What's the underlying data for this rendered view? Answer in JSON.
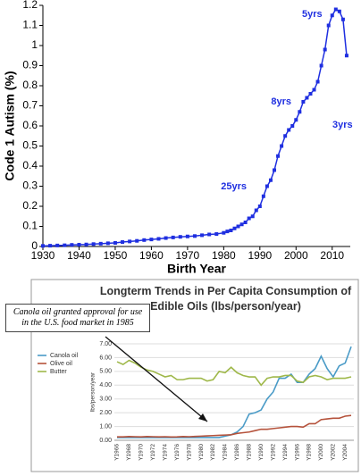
{
  "chart_data": [
    {
      "type": "line",
      "xlabel": "Birth Year",
      "ylabel": "Code 1 Autism (%)",
      "annotations": [
        "25yrs",
        "8yrs",
        "5yrs",
        "3yrs"
      ],
      "color": "#1f2fe0",
      "x": [
        1930,
        1932,
        1934,
        1936,
        1938,
        1940,
        1942,
        1944,
        1946,
        1948,
        1950,
        1952,
        1954,
        1956,
        1958,
        1960,
        1962,
        1964,
        1966,
        1968,
        1970,
        1972,
        1974,
        1976,
        1978,
        1980,
        1981,
        1982,
        1983,
        1984,
        1985,
        1986,
        1987,
        1988,
        1989,
        1990,
        1991,
        1992,
        1993,
        1994,
        1995,
        1996,
        1997,
        1998,
        1999,
        2000,
        2001,
        2002,
        2003,
        2004,
        2005,
        2006,
        2007,
        2008,
        2009,
        2010,
        2011,
        2012,
        2013,
        2014
      ],
      "values": [
        0.003,
        0.004,
        0.005,
        0.006,
        0.008,
        0.009,
        0.01,
        0.012,
        0.014,
        0.016,
        0.018,
        0.022,
        0.025,
        0.028,
        0.032,
        0.035,
        0.038,
        0.042,
        0.045,
        0.048,
        0.05,
        0.052,
        0.056,
        0.06,
        0.062,
        0.068,
        0.075,
        0.08,
        0.09,
        0.1,
        0.11,
        0.12,
        0.14,
        0.15,
        0.18,
        0.2,
        0.25,
        0.3,
        0.33,
        0.38,
        0.45,
        0.5,
        0.55,
        0.58,
        0.6,
        0.63,
        0.67,
        0.72,
        0.74,
        0.76,
        0.78,
        0.82,
        0.9,
        0.98,
        1.1,
        1.15,
        1.18,
        1.17,
        1.13,
        0.95
      ],
      "xlim": [
        1930,
        2015
      ],
      "xticks": [
        1930,
        1940,
        1950,
        1960,
        1970,
        1980,
        1990,
        2000,
        2010
      ],
      "ylim": [
        0,
        1.2
      ],
      "yticks": [
        0,
        0.1,
        0.2,
        0.3,
        0.4,
        0.5,
        0.6,
        0.7,
        0.8,
        0.9,
        1,
        1.1,
        1.2
      ]
    },
    {
      "type": "line",
      "title": "Longterm Trends in Per Capita Consumption of Edible Oils (lbs/person/year)",
      "ylabel": "lbs/person/year",
      "annotation": "Canola oil granted approval for use in the U.S. food market in 1985",
      "categories": [
        "Y1966",
        null,
        "Y1968",
        null,
        "Y1970",
        null,
        "Y1972",
        null,
        "Y1974",
        null,
        "Y1976",
        null,
        "Y1978",
        null,
        "Y1980",
        null,
        "Y1982",
        null,
        "Y1984",
        null,
        "Y1986",
        null,
        "Y1988",
        null,
        "Y1990",
        null,
        "Y1992",
        null,
        "Y1994",
        null,
        "Y1996",
        null,
        "Y1998",
        null,
        "Y2000",
        null,
        "Y2002",
        null,
        "Y2004",
        null
      ],
      "series": [
        {
          "name": "Canola oil",
          "color": "#4a9bc7",
          "values": [
            0.2,
            0.2,
            0.2,
            0.2,
            0.2,
            0.2,
            0.2,
            0.2,
            0.2,
            0.2,
            0.2,
            0.2,
            0.2,
            0.2,
            0.2,
            0.2,
            0.2,
            0.2,
            0.3,
            0.4,
            0.6,
            1.0,
            1.9,
            2.0,
            2.2,
            3.0,
            3.5,
            4.5,
            4.5,
            4.8,
            4.2,
            4.2,
            4.8,
            5.2,
            6.1,
            5.2,
            4.6,
            5.4,
            5.6,
            6.8
          ]
        },
        {
          "name": "Olive oil",
          "color": "#b5523b",
          "values": [
            0.25,
            0.25,
            0.27,
            0.26,
            0.25,
            0.27,
            0.26,
            0.25,
            0.26,
            0.24,
            0.25,
            0.27,
            0.26,
            0.28,
            0.3,
            0.32,
            0.34,
            0.36,
            0.38,
            0.4,
            0.5,
            0.55,
            0.6,
            0.7,
            0.8,
            0.8,
            0.85,
            0.9,
            0.95,
            1.0,
            1.0,
            0.95,
            1.2,
            1.2,
            1.5,
            1.55,
            1.6,
            1.6,
            1.75,
            1.8
          ]
        },
        {
          "name": "Butter",
          "color": "#9fb84a",
          "values": [
            5.7,
            5.5,
            5.8,
            5.6,
            5.3,
            5.1,
            5.0,
            4.8,
            4.6,
            4.7,
            4.4,
            4.4,
            4.5,
            4.5,
            4.5,
            4.3,
            4.4,
            5.0,
            4.9,
            5.3,
            4.9,
            4.7,
            4.6,
            4.6,
            4.0,
            4.5,
            4.6,
            4.6,
            4.7,
            4.7,
            4.3,
            4.2,
            4.6,
            4.7,
            4.6,
            4.4,
            4.5,
            4.5,
            4.5,
            4.6
          ]
        }
      ],
      "ylim": [
        0,
        7
      ],
      "yticks": [
        {
          "value": 0,
          "label": "0.00"
        },
        {
          "value": 1,
          "label": "1.00"
        },
        {
          "value": 2,
          "label": "2.00"
        },
        {
          "value": 3,
          "label": "3.00"
        },
        {
          "value": 4,
          "label": "4.00"
        },
        {
          "value": 5,
          "label": "5.00"
        },
        {
          "value": 6,
          "label": "6.00"
        },
        {
          "value": 7,
          "label": "7.00"
        }
      ]
    }
  ]
}
